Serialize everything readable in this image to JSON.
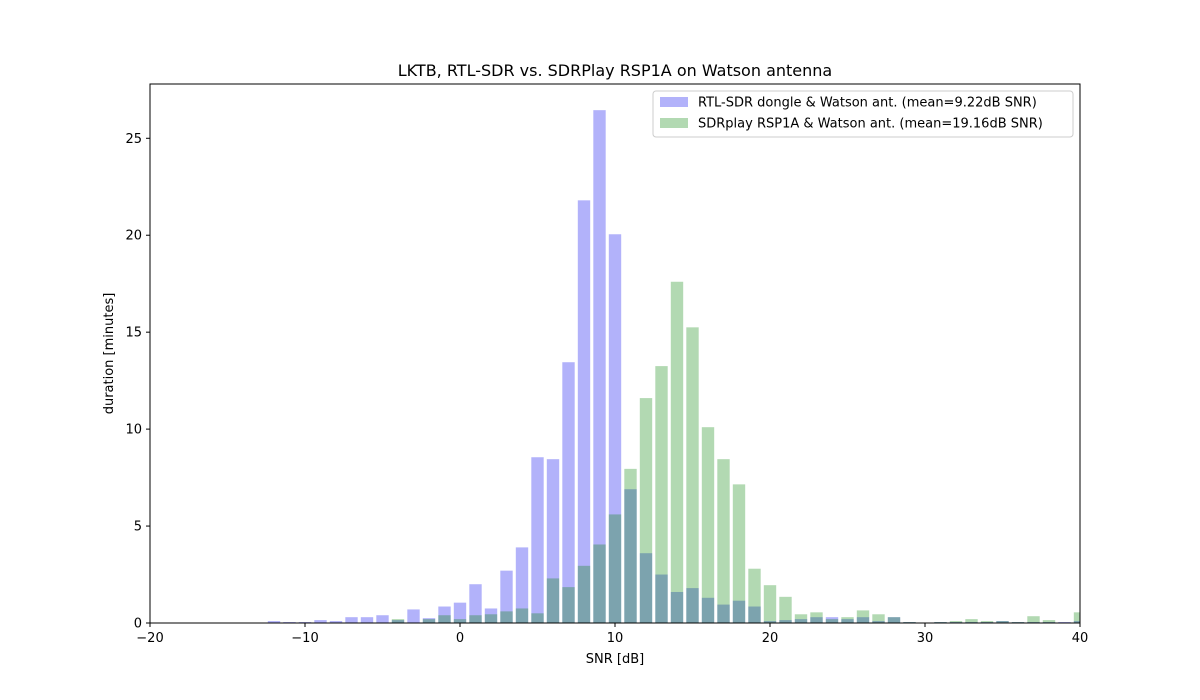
{
  "chart_data": {
    "type": "bar",
    "title": "LKTB, RTL-SDR vs. SDRPlay RSP1A on Watson antenna",
    "xlabel": "SNR [dB]",
    "ylabel": "duration [minutes]",
    "xlim": [
      -20,
      40
    ],
    "ylim": [
      0,
      27.8
    ],
    "xticks": [
      -20,
      -10,
      0,
      10,
      20,
      30,
      40
    ],
    "yticks": [
      0,
      5,
      10,
      15,
      20,
      25
    ],
    "legend_position": "top-right",
    "x": [
      -12,
      -11,
      -10,
      -9,
      -8,
      -7,
      -6,
      -5,
      -4,
      -3,
      -2,
      -1,
      0,
      1,
      2,
      3,
      4,
      5,
      6,
      7,
      8,
      9,
      10,
      11,
      12,
      13,
      14,
      15,
      16,
      17,
      18,
      19,
      20,
      21,
      22,
      23,
      24,
      25,
      26,
      27,
      28,
      29,
      30,
      31,
      32,
      33,
      34,
      35,
      36,
      37,
      38,
      39,
      40
    ],
    "series": [
      {
        "name": "RTL-SDR dongle & Watson ant. (mean=9.22dB SNR)",
        "color": "#0000ee",
        "opacity": 0.3,
        "values": [
          0.1,
          0.05,
          0.05,
          0.15,
          0.1,
          0.3,
          0.3,
          0.4,
          0.15,
          0.7,
          0.25,
          0.85,
          1.05,
          2.0,
          0.75,
          2.7,
          3.9,
          8.55,
          8.45,
          13.45,
          21.8,
          26.45,
          20.05,
          6.9,
          3.6,
          2.5,
          1.6,
          1.8,
          1.3,
          0.95,
          1.15,
          0.85,
          0.1,
          0.15,
          0.2,
          0.3,
          0.3,
          0.2,
          0.3,
          0.1,
          0.3,
          0.05,
          0.0,
          0.05,
          0.05,
          0.05,
          0.05,
          0.1,
          0.05,
          0.05,
          0.05,
          0.05,
          0.1
        ]
      },
      {
        "name": "SDRplay RSP1A & Watson ant. (mean=19.16dB SNR)",
        "color": "#008000",
        "opacity": 0.3,
        "values": [
          0.0,
          0.0,
          0.0,
          0.0,
          0.0,
          0.0,
          0.0,
          0.0,
          0.2,
          0.0,
          0.2,
          0.4,
          0.2,
          0.4,
          0.45,
          0.6,
          0.75,
          0.5,
          2.3,
          1.85,
          2.95,
          4.05,
          5.6,
          7.95,
          11.6,
          13.25,
          17.6,
          15.25,
          10.1,
          8.45,
          7.15,
          2.8,
          1.95,
          1.35,
          0.45,
          0.55,
          0.2,
          0.3,
          0.65,
          0.45,
          0.3,
          0.05,
          0.0,
          0.05,
          0.1,
          0.2,
          0.1,
          0.1,
          0.05,
          0.35,
          0.15,
          0.0,
          0.55
        ]
      }
    ]
  }
}
